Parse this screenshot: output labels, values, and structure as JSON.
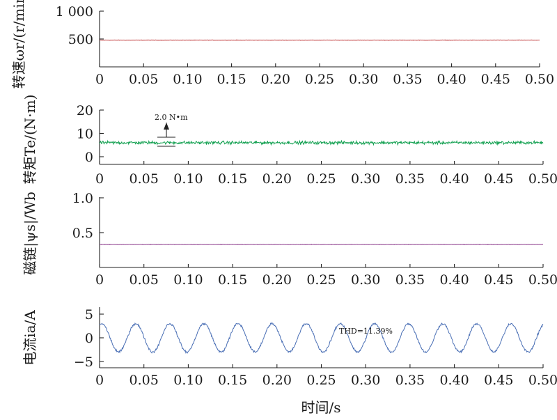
{
  "colors": {
    "speed": "#c0393a",
    "torque": "#12a050",
    "flux": "#8b3a8b",
    "current": "#4a6fb5",
    "axis": "#222222"
  },
  "x_title": "时间/s",
  "chart_data": [
    {
      "type": "line",
      "ylabel": "转速ωr/(r/min)",
      "xlim": [
        0,
        0.5
      ],
      "ylim": [
        0,
        1000
      ],
      "yticks": [
        "500",
        "1 000"
      ],
      "ytick_values": [
        500,
        1000
      ],
      "xticks": [
        "0",
        "0.05",
        "0.10",
        "0.15",
        "0.20",
        "0.25",
        "0.30",
        "0.35",
        "0.40",
        "0.45",
        "0.50"
      ],
      "series": [
        {
          "x_range": [
            0,
            0.5
          ],
          "mean": 480,
          "ripple": 5
        }
      ]
    },
    {
      "type": "line",
      "ylabel": "转矩Te/(N·m)",
      "xlim": [
        0,
        0.5
      ],
      "ylim": [
        -3,
        20
      ],
      "yticks": [
        "0",
        "10",
        "20"
      ],
      "ytick_values": [
        0,
        10,
        20
      ],
      "xticks": [
        "0",
        "0.05",
        "0.10",
        "0.15",
        "0.20",
        "0.25",
        "0.30",
        "0.35",
        "0.40",
        "0.45",
        "0.50"
      ],
      "annotation": "2.0 N•m",
      "series": [
        {
          "x_range": [
            0,
            0.5
          ],
          "mean": 6,
          "ripple": 1.0
        }
      ]
    },
    {
      "type": "line",
      "ylabel": "磁链|ψs|/Wb",
      "xlim": [
        0,
        0.5
      ],
      "ylim": [
        0,
        1.0
      ],
      "yticks": [
        "0.5",
        "1.0"
      ],
      "ytick_values": [
        0.5,
        1.0
      ],
      "xticks": [
        "0",
        "0.05",
        "0.10",
        "0.15",
        "0.20",
        "0.25",
        "0.30",
        "0.35",
        "0.40",
        "0.45",
        "0.50"
      ],
      "series": [
        {
          "x_range": [
            0,
            0.5
          ],
          "mean": 0.33,
          "ripple": 0.005
        }
      ]
    },
    {
      "type": "line",
      "ylabel": "电流ia/A",
      "xlim": [
        0,
        0.5
      ],
      "ylim": [
        -5,
        5
      ],
      "yticks": [
        "−5",
        "0",
        "5"
      ],
      "ytick_values": [
        -5,
        0,
        5
      ],
      "xticks": [
        "0",
        "0.05",
        "0.10",
        "0.15",
        "0.20",
        "0.25",
        "0.30",
        "0.35",
        "0.40",
        "0.45",
        "0.50"
      ],
      "annotation": "THD=11.39%",
      "series": [
        {
          "x_range": [
            0,
            0.5
          ],
          "amplitude": 3,
          "frequency_hz": 26,
          "ripple": 0.35
        }
      ]
    }
  ]
}
